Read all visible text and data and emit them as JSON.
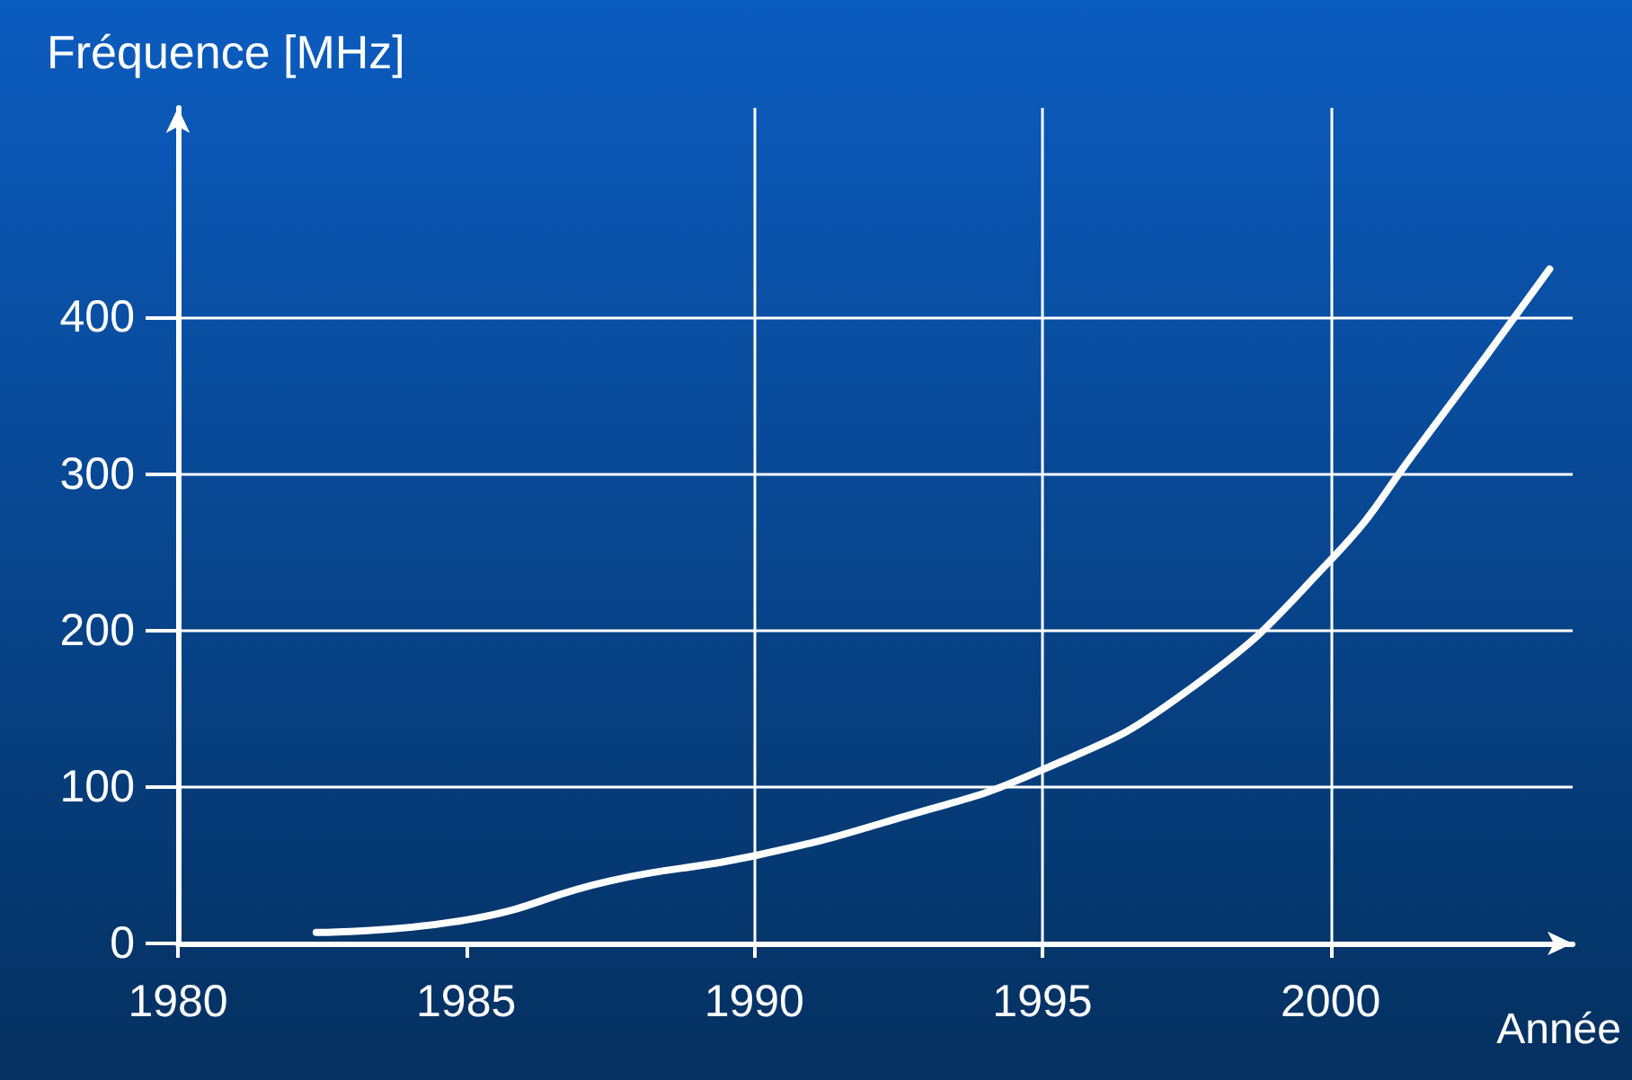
{
  "chart_data": {
    "type": "line",
    "ylabel": "Fréquence [MHz]",
    "xlabel": "Année",
    "x": [
      1982.4,
      1985,
      1987.5,
      1990,
      1992.5,
      1995,
      1997.5,
      2000,
      2001.5,
      2003.8
    ],
    "series": [
      {
        "color": "#ffffff",
        "values": [
          7,
          15,
          40,
          56,
          80,
          111,
          161,
          245,
          316,
          431
        ]
      }
    ],
    "xlim": [
      1980,
      2004.2
    ],
    "xticks": [
      1980,
      1985,
      1990,
      1995,
      2000
    ],
    "ylim": [
      0,
      534
    ],
    "yticks": [
      0,
      100,
      200,
      300,
      400
    ],
    "grid": "y",
    "marker": "none",
    "line_style": "solid",
    "ref_lines": [
      {
        "axis": "x",
        "value": 1990,
        "color": "#ffffff"
      },
      {
        "axis": "x",
        "value": 1995,
        "color": "#ffffff"
      },
      {
        "axis": "x",
        "value": 2000,
        "color": "#ffffff"
      }
    ]
  }
}
